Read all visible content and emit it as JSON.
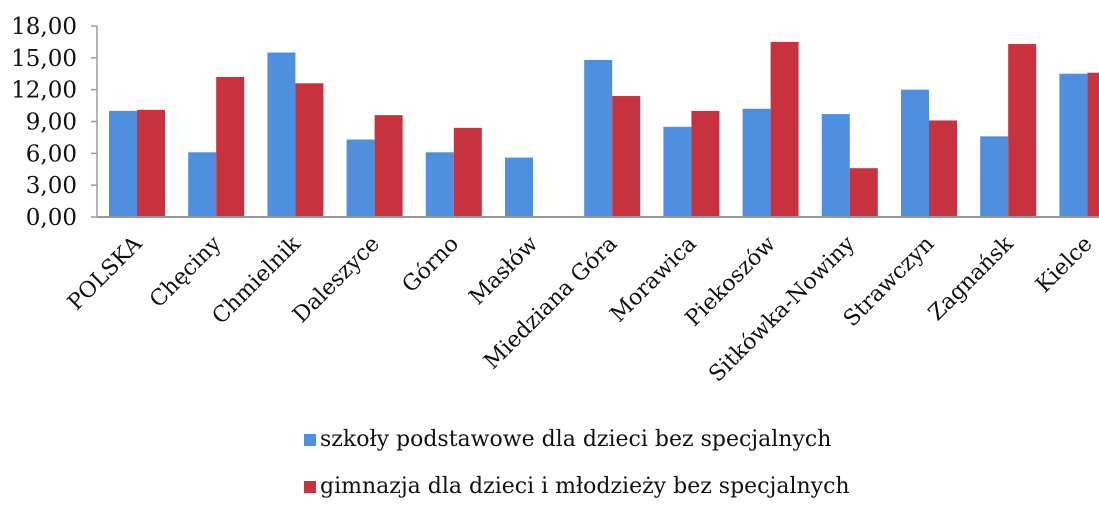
{
  "chart_data": {
    "type": "bar",
    "title": "",
    "xlabel": "",
    "ylabel": "",
    "ylim": [
      0,
      18
    ],
    "yticks": [
      "0,00",
      "3,00",
      "6,00",
      "9,00",
      "12,00",
      "15,00",
      "18,00"
    ],
    "grid": false,
    "legend_position": "bottom",
    "categories": [
      "POLSKA",
      "Chęciny",
      "Chmielnik",
      "Daleszyce",
      "Górno",
      "Masłów",
      "Miedziana Góra",
      "Morawica",
      "Piekoszów",
      "Sitkówka-Nowiny",
      "Strawczyn",
      "Zagnańsk",
      "Kielce"
    ],
    "series": [
      {
        "name": "szkoły podstawowe dla dzieci bez specjalnych",
        "color": "#4f8fe0",
        "values": [
          10.0,
          6.1,
          15.5,
          7.3,
          6.1,
          5.6,
          14.8,
          8.5,
          10.2,
          9.7,
          12.0,
          7.6,
          13.5
        ]
      },
      {
        "name": "gimnazja dla dzieci i młodzieży bez specjalnych",
        "color": "#c8323f",
        "values": [
          10.1,
          13.2,
          12.6,
          9.6,
          8.4,
          0,
          11.4,
          10.0,
          16.5,
          4.6,
          9.1,
          16.3,
          13.6
        ]
      }
    ]
  }
}
